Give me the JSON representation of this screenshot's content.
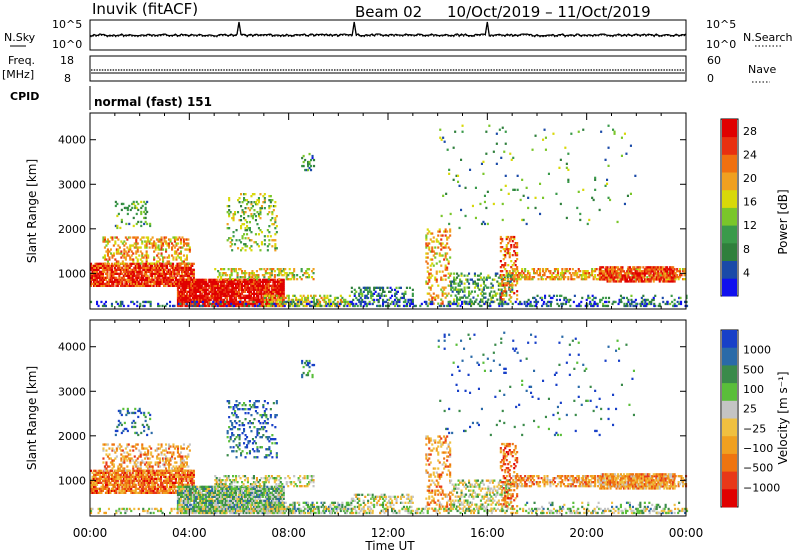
{
  "header": {
    "station": "Inuvik (fitACF)",
    "beam": "Beam 02",
    "date_range": "10/Oct/2019 – 11/Oct/2019"
  },
  "top_panels": {
    "nsky_label": "N.Sky",
    "nsky_ticks": [
      "10^5",
      "10^0"
    ],
    "nsearch_label": "N.Search",
    "freq_label": "Freq.",
    "freq_unit": "[MHz]",
    "freq_ticks": [
      "18",
      "8"
    ],
    "nave_label": "Nave",
    "nave_ticks": [
      "60",
      "0"
    ],
    "cpid_label": "CPID",
    "cpid_text": "normal (fast) 151"
  },
  "colors": {
    "power": [
      "#1010ee",
      "#1a4aa8",
      "#2f7f3c",
      "#3a9a4a",
      "#7ac62a",
      "#d8d80a",
      "#f0a020",
      "#f07010",
      "#e83010",
      "#e00000"
    ],
    "velocity": [
      "#1840c8",
      "#2a6aa8",
      "#3a8a4a",
      "#5abe3a",
      "#c4c4c4",
      "#f0c040",
      "#f0a020",
      "#ee7410",
      "#e83818",
      "#e00000"
    ],
    "axis": "#000000"
  },
  "chart_data": [
    {
      "type": "heatmap",
      "name": "power",
      "ylabel": "Slant Range [km]",
      "yticks": [
        "1000",
        "2000",
        "3000",
        "4000"
      ],
      "ylim": [
        200,
        4600
      ],
      "xticks": [
        "00:00",
        "04:00",
        "08:00",
        "12:00",
        "16:00",
        "20:00",
        "00:00"
      ],
      "xlim_hours": [
        0,
        24
      ],
      "colorbar_label": "Power [dB]",
      "colorbar_ticks": [
        "4",
        "8",
        "12",
        "16",
        "20",
        "24",
        "28"
      ],
      "colorbar_range": [
        0,
        30
      ]
    },
    {
      "type": "heatmap",
      "name": "velocity",
      "ylabel": "Slant Range [km]",
      "yticks": [
        "1000",
        "2000",
        "3000",
        "4000"
      ],
      "ylim": [
        200,
        4600
      ],
      "xticks": [
        "00:00",
        "04:00",
        "08:00",
        "12:00",
        "16:00",
        "20:00",
        "00:00"
      ],
      "xlabel": "Time UT",
      "xlim_hours": [
        0,
        24
      ],
      "colorbar_label": "Velocity [m s⁻¹]",
      "colorbar_ticks": [
        "1000",
        "500",
        "100",
        "25",
        "−25",
        "−100",
        "−500",
        "−1000"
      ]
    }
  ]
}
